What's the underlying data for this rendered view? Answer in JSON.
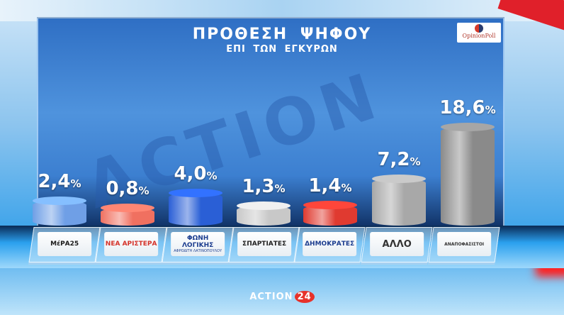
{
  "chart_data": {
    "type": "bar",
    "title": "ΠΡΟΘΕΣΗ  ΨΗΦΟΥ",
    "subtitle": "ΕΠΙ ΤΩΝ ΕΓΚΥΡΩΝ",
    "categories": [
      "ΜέΡΑ25",
      "ΝΕΑ ΑΡΙΣΤΕΡΑ",
      "ΦΩΝΗ ΛΟΓΙΚΗΣ",
      "ΣΠΑΡΤΙΑΤΕΣ",
      "ΔΗΜΟΚΡΑΤΕΣ",
      "ΑΛΛΟ",
      "ΑΝΑΠΟΦΑΣΙΣΤΟΙ"
    ],
    "values": [
      2.4,
      0.8,
      4.0,
      1.3,
      1.4,
      7.2,
      18.6
    ],
    "value_labels": [
      "2,4",
      "0,8",
      "4,0",
      "1,3",
      "1,4",
      "7,2",
      "18,6"
    ],
    "unit": "%",
    "colors": [
      "#6f9fe6",
      "#f07060",
      "#2a5fd6",
      "#c8c8c8",
      "#e03a30",
      "#a8a8a8",
      "#8a8a8a"
    ],
    "label_colors": [
      "#1a1a1a",
      "#d5332a",
      "#1c3d8f",
      "#222222",
      "#1c3d8f",
      "#333333",
      "#333333"
    ],
    "sublabels": [
      "",
      "",
      "ΑΦΡΟΔΙΤΗ ΛΑΤΙΝΟΠΟΥΛΟΥ",
      "",
      "",
      "",
      ""
    ]
  },
  "logo": "OpinionPoll",
  "channel": {
    "name": "ACTION",
    "number": "24"
  }
}
